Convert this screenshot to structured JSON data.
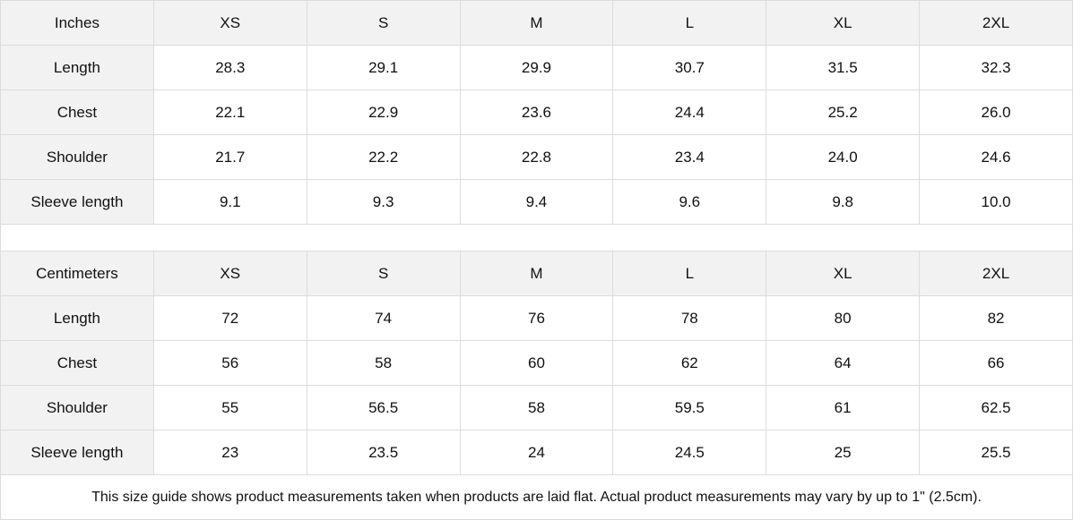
{
  "sizes": [
    "XS",
    "S",
    "M",
    "L",
    "XL",
    "2XL"
  ],
  "inches": {
    "unit_label": "Inches",
    "rows": [
      {
        "label": "Length",
        "values": [
          "28.3",
          "29.1",
          "29.9",
          "30.7",
          "31.5",
          "32.3"
        ]
      },
      {
        "label": "Chest",
        "values": [
          "22.1",
          "22.9",
          "23.6",
          "24.4",
          "25.2",
          "26.0"
        ]
      },
      {
        "label": "Shoulder",
        "values": [
          "21.7",
          "22.2",
          "22.8",
          "23.4",
          "24.0",
          "24.6"
        ]
      },
      {
        "label": "Sleeve length",
        "values": [
          "9.1",
          "9.3",
          "9.4",
          "9.6",
          "9.8",
          "10.0"
        ]
      }
    ]
  },
  "centimeters": {
    "unit_label": "Centimeters",
    "rows": [
      {
        "label": "Length",
        "values": [
          "72",
          "74",
          "76",
          "78",
          "80",
          "82"
        ]
      },
      {
        "label": "Chest",
        "values": [
          "56",
          "58",
          "60",
          "62",
          "64",
          "66"
        ]
      },
      {
        "label": "Shoulder",
        "values": [
          "55",
          "56.5",
          "58",
          "59.5",
          "61",
          "62.5"
        ]
      },
      {
        "label": "Sleeve length",
        "values": [
          "23",
          "23.5",
          "24",
          "24.5",
          "25",
          "25.5"
        ]
      }
    ]
  },
  "footnote": "This size guide shows product measurements taken when products are laid flat.  Actual product measurements may vary by up to 1\" (2.5cm).",
  "colors": {
    "header_bg": "#f2f2f2",
    "border": "#dcdcdc"
  }
}
